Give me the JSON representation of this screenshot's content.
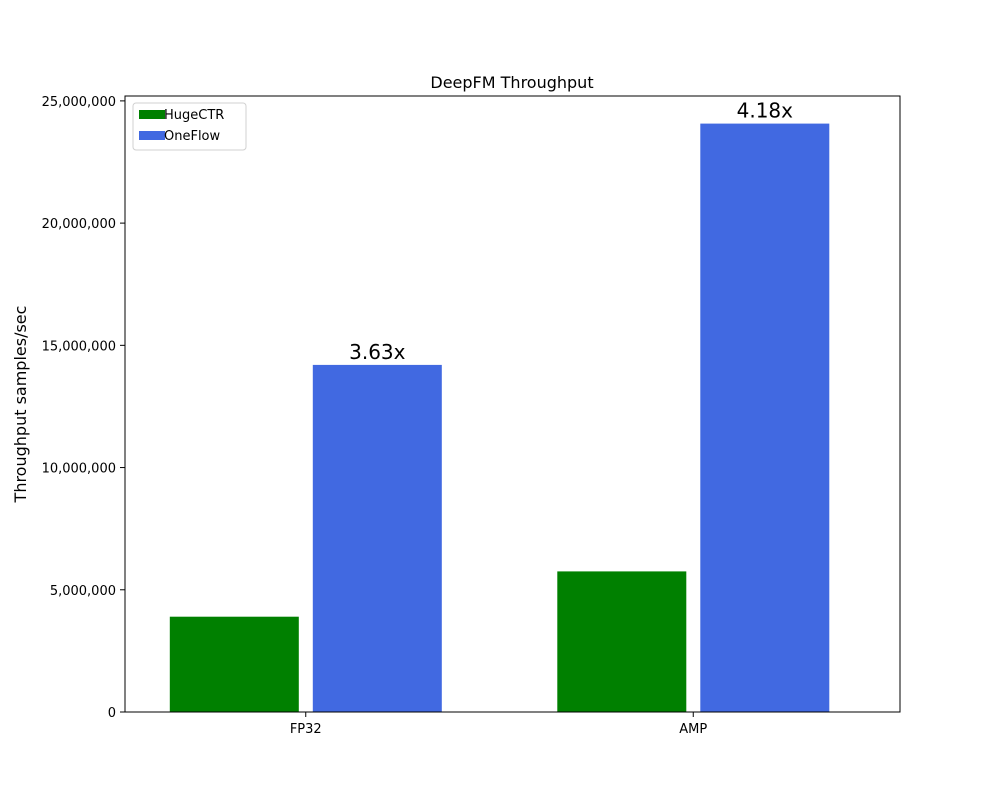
{
  "chart_data": {
    "type": "bar",
    "title": "DeepFM Throughput",
    "xlabel": "",
    "ylabel": "Throughput samples/sec",
    "categories": [
      "FP32",
      "AMP"
    ],
    "series": [
      {
        "name": "HugeCTR",
        "color": "#008000",
        "values": [
          3900000,
          5750000
        ]
      },
      {
        "name": "OneFlow",
        "color": "#4169E1",
        "values": [
          14200000,
          24070000
        ]
      }
    ],
    "bar_labels": [
      {
        "series": "OneFlow",
        "labels": [
          "3.63x",
          "4.18x"
        ]
      }
    ],
    "ylim": [
      0,
      25200000
    ],
    "yticks": [
      0,
      5000000,
      10000000,
      15000000,
      20000000,
      25000000
    ],
    "ytick_labels": [
      "0",
      "5,000,000",
      "10,000,000",
      "15,000,000",
      "20,000,000",
      "25,000,000"
    ],
    "grid": false,
    "legend_position": "top-left"
  }
}
